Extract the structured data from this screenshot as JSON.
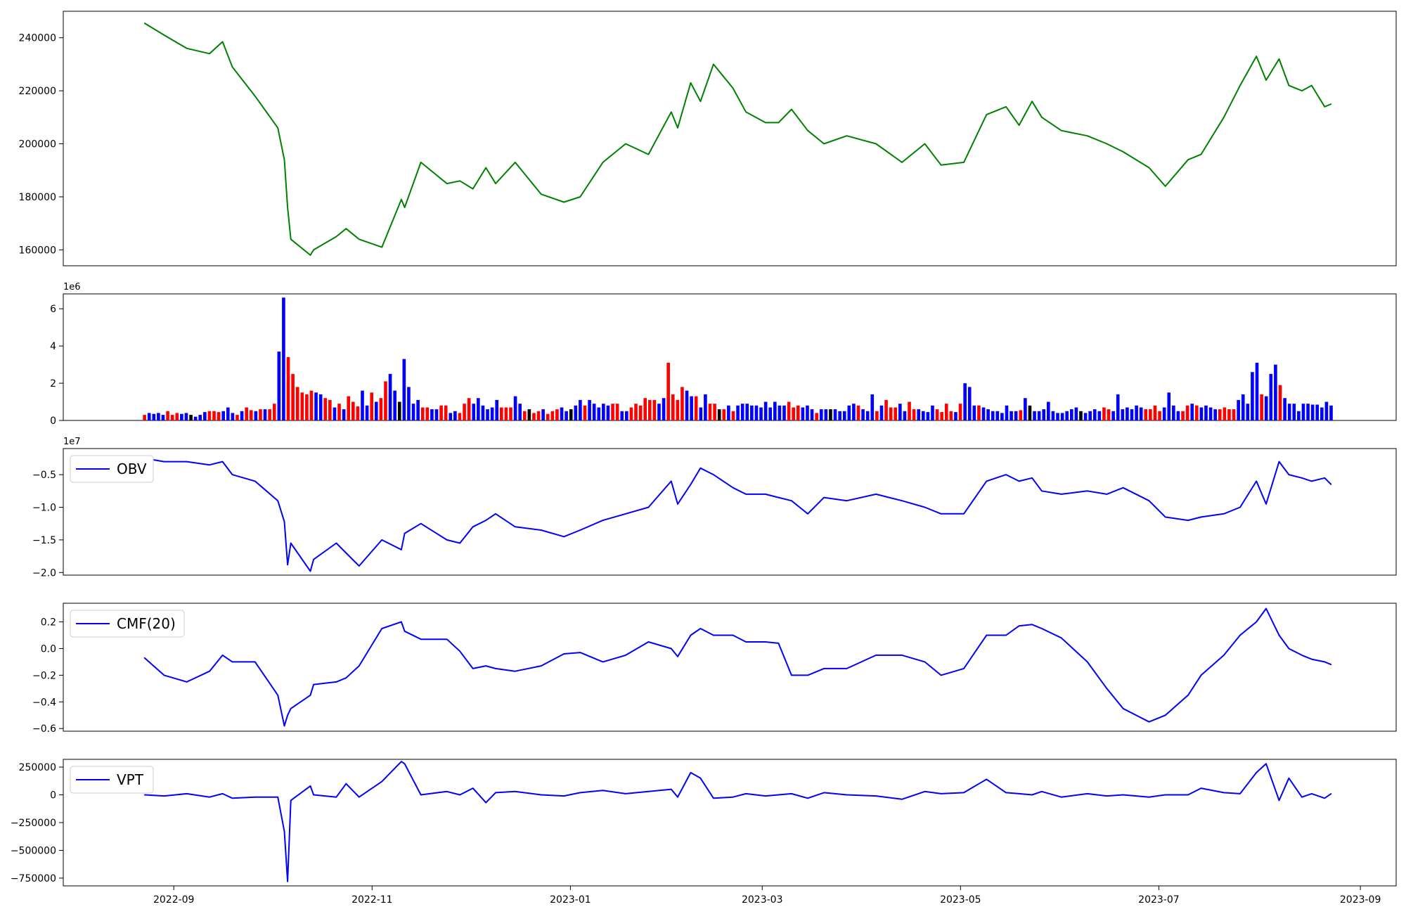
{
  "x_ticks": [
    "2022-09",
    "2022-11",
    "2023-01",
    "2023-03",
    "2023-05",
    "2023-07",
    "2023-09"
  ],
  "chart_data": [
    {
      "type": "line",
      "name": "price",
      "color": "#008000",
      "yticks": [
        160000,
        180000,
        200000,
        220000,
        240000
      ],
      "ylim": [
        154000,
        250000
      ],
      "grid": false,
      "x": [
        "2022-08-23",
        "2022-08-29",
        "2022-09-05",
        "2022-09-12",
        "2022-09-16",
        "2022-09-19",
        "2022-09-26",
        "2022-10-03",
        "2022-10-05",
        "2022-10-06",
        "2022-10-07",
        "2022-10-13",
        "2022-10-14",
        "2022-10-21",
        "2022-10-24",
        "2022-10-28",
        "2022-11-04",
        "2022-11-10",
        "2022-11-11",
        "2022-11-16",
        "2022-11-24",
        "2022-11-28",
        "2022-12-02",
        "2022-12-06",
        "2022-12-09",
        "2022-12-15",
        "2022-12-23",
        "2022-12-30",
        "2023-01-04",
        "2023-01-11",
        "2023-01-18",
        "2023-01-25",
        "2023-02-01",
        "2023-02-03",
        "2023-02-07",
        "2023-02-10",
        "2023-02-14",
        "2023-02-20",
        "2023-02-24",
        "2023-03-02",
        "2023-03-06",
        "2023-03-10",
        "2023-03-15",
        "2023-03-20",
        "2023-03-27",
        "2023-04-05",
        "2023-04-13",
        "2023-04-20",
        "2023-04-25",
        "2023-05-02",
        "2023-05-09",
        "2023-05-15",
        "2023-05-19",
        "2023-05-23",
        "2023-05-26",
        "2023-06-01",
        "2023-06-09",
        "2023-06-15",
        "2023-06-20",
        "2023-06-28",
        "2023-07-03",
        "2023-07-10",
        "2023-07-14",
        "2023-07-21",
        "2023-07-26",
        "2023-07-31",
        "2023-08-03",
        "2023-08-07",
        "2023-08-10",
        "2023-08-14",
        "2023-08-17",
        "2023-08-21",
        "2023-08-23"
      ],
      "y": [
        245500,
        241000,
        236000,
        234000,
        238500,
        229000,
        218000,
        206000,
        194000,
        176000,
        164000,
        158000,
        160000,
        165000,
        168000,
        164000,
        161000,
        179000,
        176000,
        193000,
        185000,
        186000,
        183000,
        191000,
        185000,
        193000,
        181000,
        178000,
        180000,
        193000,
        200000,
        196000,
        212000,
        206000,
        223000,
        216000,
        230000,
        221000,
        212000,
        208000,
        208000,
        213000,
        205000,
        200000,
        203000,
        200000,
        193000,
        200000,
        192000,
        193000,
        211000,
        214000,
        207000,
        216000,
        210000,
        205000,
        203000,
        200000,
        197000,
        191000,
        184000,
        194000,
        196000,
        210000,
        222000,
        233000,
        224000,
        232000,
        222000,
        220000,
        222000,
        214000,
        215000
      ]
    },
    {
      "type": "bar",
      "name": "volume",
      "multiplier_label": "1e6",
      "yticks": [
        0,
        2,
        4,
        6
      ],
      "ylim": [
        0,
        6.8
      ],
      "colors": {
        "up": "#ff0000",
        "down": "#0000ff",
        "flat": "#000000"
      },
      "x_range": [
        "2022-08-23",
        "2023-08-23"
      ],
      "values": [
        0.3,
        0.4,
        0.35,
        0.4,
        0.3,
        0.5,
        0.3,
        0.4,
        0.35,
        0.4,
        0.3,
        0.2,
        0.3,
        0.45,
        0.5,
        0.5,
        0.45,
        0.5,
        0.7,
        0.4,
        0.3,
        0.5,
        0.7,
        0.55,
        0.5,
        0.6,
        0.6,
        0.6,
        0.9,
        3.7,
        6.6,
        3.4,
        2.5,
        1.8,
        1.5,
        1.4,
        1.6,
        1.5,
        1.4,
        1.2,
        1.1,
        0.7,
        0.9,
        0.6,
        1.3,
        1.0,
        0.75,
        1.6,
        0.8,
        1.5,
        1.0,
        1.2,
        2.1,
        2.5,
        1.6,
        1.0,
        3.3,
        1.8,
        0.9,
        1.1,
        0.7,
        0.7,
        0.6,
        0.6,
        0.8,
        0.8,
        0.4,
        0.5,
        0.4,
        0.9,
        1.2,
        0.9,
        1.2,
        0.8,
        0.6,
        0.7,
        1.1,
        0.7,
        0.7,
        0.7,
        1.3,
        0.9,
        0.5,
        0.6,
        0.4,
        0.5,
        0.6,
        0.35,
        0.5,
        0.6,
        0.7,
        0.5,
        0.6,
        0.8,
        1.1,
        0.8,
        1.1,
        0.9,
        0.7,
        0.9,
        0.8,
        0.9,
        0.9,
        0.5,
        0.5,
        0.7,
        0.9,
        0.8,
        1.2,
        1.1,
        1.1,
        0.9,
        1.2,
        3.1,
        1.4,
        1.1,
        1.8,
        1.6,
        1.3,
        1.3,
        0.7,
        1.4,
        0.9,
        0.9,
        0.6,
        0.6,
        0.8,
        0.5,
        0.8,
        0.9,
        0.9,
        0.8,
        0.8,
        0.7,
        1.0,
        0.7,
        1.0,
        0.8,
        0.8,
        1.0,
        0.7,
        0.8,
        0.7,
        0.8,
        0.6,
        0.4,
        0.6,
        0.6,
        0.6,
        0.6,
        0.5,
        0.5,
        0.8,
        0.9,
        0.8,
        0.6,
        0.5,
        1.4,
        0.5,
        0.8,
        1.1,
        0.7,
        0.7,
        0.9,
        0.5,
        1.0,
        0.6,
        0.6,
        0.5,
        0.45,
        0.8,
        0.6,
        0.45,
        0.9,
        0.5,
        0.45,
        0.9,
        2.0,
        1.8,
        0.8,
        0.8,
        0.7,
        0.6,
        0.5,
        0.5,
        0.4,
        0.8,
        0.5,
        0.5,
        0.55,
        1.2,
        0.8,
        0.5,
        0.5,
        0.6,
        1.0,
        0.5,
        0.4,
        0.4,
        0.5,
        0.6,
        0.7,
        0.5,
        0.4,
        0.5,
        0.6,
        0.5,
        0.7,
        0.6,
        0.5,
        1.4,
        0.6,
        0.7,
        0.6,
        0.8,
        0.7,
        0.6,
        0.6,
        0.8,
        0.5,
        0.7,
        1.5,
        0.8,
        0.5,
        0.5,
        0.8,
        0.9,
        0.8,
        0.7,
        0.8,
        0.7,
        0.6,
        0.6,
        0.7,
        0.6,
        0.6,
        1.1,
        1.4,
        0.9,
        2.6,
        3.1,
        1.4,
        1.3,
        2.5,
        3.0,
        1.9,
        1.2,
        0.9,
        0.9,
        0.5,
        0.9,
        0.9,
        0.85,
        0.85,
        0.7,
        1.0,
        0.8
      ],
      "bar_colors": "rbbbbrrrbbkbbbrrrbbbrbrrbrbrrbbrrrrrrbbrrbrbrrrbbrbrrbbkbbbbrrbbrrbbrrrbbbbbbrrrbbrkrrbrrrbbkbbrbbbbbrrbbrrrrrrbbrrrrbbrbbrrkrbrbbbbbbbbbbbrrrbbbrbbkbbbbbrbbbrbrrrbbrrbbbbrrrrbrbbbrbbbbbbbbrbkbbbbbbbbbbkbbbbrrbbbbbbbrrrrbbbbrrbrbbbbrrrrbbbbbrbbbrbbbbbbbbbbbbrb"
    },
    {
      "type": "line",
      "name": "OBV",
      "legend": "OBV",
      "legend_position": "upper left",
      "color": "#0000ff",
      "multiplier_label": "1e7",
      "yticks": [
        -2.0,
        -1.5,
        -1.0,
        -0.5
      ],
      "ytick_labels": [
        "−2.0",
        "−1.5",
        "−1.0",
        "−0.5"
      ],
      "ylim": [
        -2.04,
        -0.1
      ],
      "x": [
        "2022-08-23",
        "2022-08-29",
        "2022-09-05",
        "2022-09-12",
        "2022-09-16",
        "2022-09-19",
        "2022-09-26",
        "2022-10-03",
        "2022-10-05",
        "2022-10-06",
        "2022-10-07",
        "2022-10-13",
        "2022-10-14",
        "2022-10-21",
        "2022-10-24",
        "2022-10-28",
        "2022-11-04",
        "2022-11-10",
        "2022-11-11",
        "2022-11-16",
        "2022-11-24",
        "2022-11-28",
        "2022-12-02",
        "2022-12-06",
        "2022-12-09",
        "2022-12-15",
        "2022-12-23",
        "2022-12-30",
        "2023-01-04",
        "2023-01-11",
        "2023-01-18",
        "2023-01-25",
        "2023-02-01",
        "2023-02-03",
        "2023-02-07",
        "2023-02-10",
        "2023-02-14",
        "2023-02-20",
        "2023-02-24",
        "2023-03-02",
        "2023-03-06",
        "2023-03-10",
        "2023-03-15",
        "2023-03-20",
        "2023-03-27",
        "2023-04-05",
        "2023-04-13",
        "2023-04-20",
        "2023-04-25",
        "2023-05-02",
        "2023-05-09",
        "2023-05-15",
        "2023-05-19",
        "2023-05-23",
        "2023-05-26",
        "2023-06-01",
        "2023-06-09",
        "2023-06-15",
        "2023-06-20",
        "2023-06-28",
        "2023-07-03",
        "2023-07-10",
        "2023-07-14",
        "2023-07-21",
        "2023-07-26",
        "2023-07-31",
        "2023-08-03",
        "2023-08-07",
        "2023-08-10",
        "2023-08-14",
        "2023-08-17",
        "2023-08-21",
        "2023-08-23"
      ],
      "y": [
        -0.25,
        -0.3,
        -0.3,
        -0.35,
        -0.3,
        -0.5,
        -0.6,
        -0.9,
        -1.22,
        -1.88,
        -1.55,
        -1.98,
        -1.8,
        -1.55,
        -1.7,
        -1.9,
        -1.5,
        -1.65,
        -1.4,
        -1.25,
        -1.5,
        -1.55,
        -1.3,
        -1.2,
        -1.1,
        -1.3,
        -1.35,
        -1.45,
        -1.35,
        -1.2,
        -1.1,
        -1.0,
        -0.6,
        -0.95,
        -0.65,
        -0.4,
        -0.5,
        -0.7,
        -0.8,
        -0.8,
        -0.85,
        -0.9,
        -1.1,
        -0.85,
        -0.9,
        -0.8,
        -0.9,
        -1.0,
        -1.1,
        -1.1,
        -0.6,
        -0.5,
        -0.6,
        -0.55,
        -0.75,
        -0.8,
        -0.75,
        -0.8,
        -0.7,
        -0.9,
        -1.15,
        -1.2,
        -1.15,
        -1.1,
        -1.0,
        -0.6,
        -0.95,
        -0.3,
        -0.5,
        -0.55,
        -0.6,
        -0.55,
        -0.65
      ]
    },
    {
      "type": "line",
      "name": "CMF(20)",
      "legend": "CMF(20)",
      "legend_position": "upper left",
      "color": "#0000ff",
      "yticks": [
        -0.6,
        -0.4,
        -0.2,
        0.0,
        0.2
      ],
      "ytick_labels": [
        "−0.6",
        "−0.4",
        "−0.2",
        "0.0",
        "0.2"
      ],
      "ylim": [
        -0.62,
        0.34
      ],
      "x": [
        "2022-08-23",
        "2022-08-29",
        "2022-09-05",
        "2022-09-12",
        "2022-09-16",
        "2022-09-19",
        "2022-09-26",
        "2022-10-03",
        "2022-10-05",
        "2022-10-06",
        "2022-10-07",
        "2022-10-13",
        "2022-10-14",
        "2022-10-21",
        "2022-10-24",
        "2022-10-28",
        "2022-11-04",
        "2022-11-10",
        "2022-11-11",
        "2022-11-16",
        "2022-11-24",
        "2022-11-28",
        "2022-12-02",
        "2022-12-06",
        "2022-12-09",
        "2022-12-15",
        "2022-12-23",
        "2022-12-30",
        "2023-01-04",
        "2023-01-11",
        "2023-01-18",
        "2023-01-25",
        "2023-02-01",
        "2023-02-03",
        "2023-02-07",
        "2023-02-10",
        "2023-02-14",
        "2023-02-20",
        "2023-02-24",
        "2023-03-02",
        "2023-03-06",
        "2023-03-10",
        "2023-03-15",
        "2023-03-20",
        "2023-03-27",
        "2023-04-05",
        "2023-04-13",
        "2023-04-20",
        "2023-04-25",
        "2023-05-02",
        "2023-05-09",
        "2023-05-15",
        "2023-05-19",
        "2023-05-23",
        "2023-05-26",
        "2023-06-01",
        "2023-06-09",
        "2023-06-15",
        "2023-06-20",
        "2023-06-28",
        "2023-07-03",
        "2023-07-10",
        "2023-07-14",
        "2023-07-21",
        "2023-07-26",
        "2023-07-31",
        "2023-08-03",
        "2023-08-07",
        "2023-08-10",
        "2023-08-14",
        "2023-08-17",
        "2023-08-21",
        "2023-08-23"
      ],
      "y": [
        -0.07,
        -0.2,
        -0.25,
        -0.17,
        -0.05,
        -0.1,
        -0.1,
        -0.35,
        -0.58,
        -0.5,
        -0.45,
        -0.35,
        -0.27,
        -0.25,
        -0.22,
        -0.13,
        0.15,
        0.2,
        0.13,
        0.07,
        0.07,
        -0.02,
        -0.15,
        -0.13,
        -0.15,
        -0.17,
        -0.13,
        -0.04,
        -0.03,
        -0.1,
        -0.05,
        0.05,
        0.0,
        -0.06,
        0.1,
        0.15,
        0.1,
        0.1,
        0.05,
        0.05,
        0.04,
        -0.2,
        -0.2,
        -0.15,
        -0.15,
        -0.05,
        -0.05,
        -0.1,
        -0.2,
        -0.15,
        0.1,
        0.1,
        0.17,
        0.18,
        0.15,
        0.08,
        -0.1,
        -0.3,
        -0.45,
        -0.55,
        -0.5,
        -0.35,
        -0.2,
        -0.05,
        0.1,
        0.2,
        0.3,
        0.1,
        0.0,
        -0.05,
        -0.08,
        -0.1,
        -0.12
      ]
    },
    {
      "type": "line",
      "name": "VPT",
      "legend": "VPT",
      "legend_position": "upper left",
      "color": "#0000ff",
      "yticks": [
        -750000,
        -500000,
        -250000,
        0,
        250000
      ],
      "ytick_labels": [
        "−750000",
        "−500000",
        "−250000",
        "0",
        "250000"
      ],
      "ylim": [
        -820000,
        320000
      ],
      "x": [
        "2022-08-23",
        "2022-08-29",
        "2022-09-05",
        "2022-09-12",
        "2022-09-16",
        "2022-09-19",
        "2022-09-26",
        "2022-10-03",
        "2022-10-05",
        "2022-10-06",
        "2022-10-07",
        "2022-10-13",
        "2022-10-14",
        "2022-10-21",
        "2022-10-24",
        "2022-10-28",
        "2022-11-04",
        "2022-11-10",
        "2022-11-11",
        "2022-11-16",
        "2022-11-24",
        "2022-11-28",
        "2022-12-02",
        "2022-12-06",
        "2022-12-09",
        "2022-12-15",
        "2022-12-23",
        "2022-12-30",
        "2023-01-04",
        "2023-01-11",
        "2023-01-18",
        "2023-01-25",
        "2023-02-01",
        "2023-02-03",
        "2023-02-07",
        "2023-02-10",
        "2023-02-14",
        "2023-02-20",
        "2023-02-24",
        "2023-03-02",
        "2023-03-06",
        "2023-03-10",
        "2023-03-15",
        "2023-03-20",
        "2023-03-27",
        "2023-04-05",
        "2023-04-13",
        "2023-04-20",
        "2023-04-25",
        "2023-05-02",
        "2023-05-09",
        "2023-05-15",
        "2023-05-19",
        "2023-05-23",
        "2023-05-26",
        "2023-06-01",
        "2023-06-09",
        "2023-06-15",
        "2023-06-20",
        "2023-06-28",
        "2023-07-03",
        "2023-07-10",
        "2023-07-14",
        "2023-07-21",
        "2023-07-26",
        "2023-07-31",
        "2023-08-03",
        "2023-08-07",
        "2023-08-10",
        "2023-08-14",
        "2023-08-17",
        "2023-08-21",
        "2023-08-23"
      ],
      "y": [
        0,
        -10000,
        10000,
        -20000,
        10000,
        -30000,
        -20000,
        -20000,
        -330000,
        -780000,
        -50000,
        80000,
        0,
        -20000,
        100000,
        -20000,
        120000,
        300000,
        280000,
        0,
        30000,
        0,
        60000,
        -70000,
        20000,
        30000,
        0,
        -10000,
        20000,
        40000,
        10000,
        30000,
        50000,
        -20000,
        200000,
        150000,
        -30000,
        -20000,
        10000,
        -10000,
        0,
        10000,
        -30000,
        20000,
        0,
        -10000,
        -40000,
        30000,
        10000,
        20000,
        140000,
        20000,
        10000,
        0,
        30000,
        -20000,
        10000,
        -10000,
        0,
        -20000,
        0,
        0,
        60000,
        20000,
        10000,
        200000,
        280000,
        -50000,
        150000,
        -20000,
        10000,
        -30000,
        10000
      ]
    }
  ]
}
